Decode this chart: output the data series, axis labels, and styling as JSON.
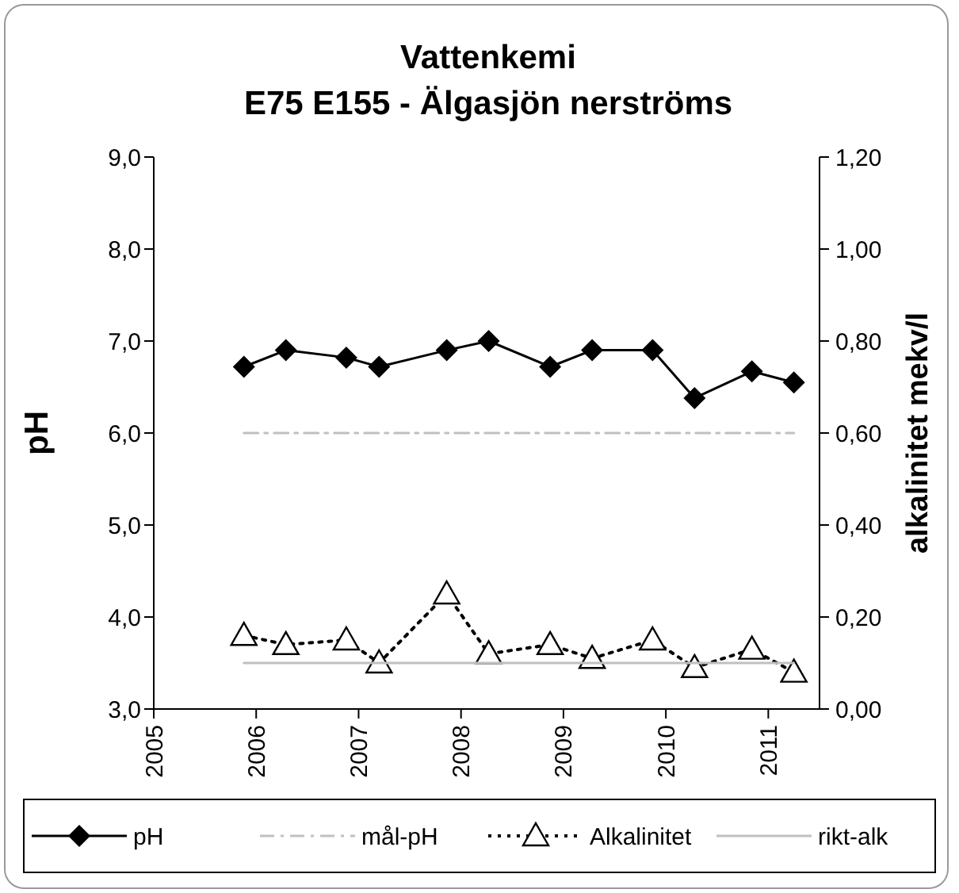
{
  "chart_data": {
    "type": "line",
    "title": "Vattenkemi",
    "subtitle": "E75 E155 - Älgasjön nerströms",
    "ylabel": "pH",
    "y2label": "alkalinitet mekv/l",
    "xlim": [
      2005,
      2011.5
    ],
    "xticks": [
      2005,
      2006,
      2007,
      2008,
      2009,
      2010,
      2011
    ],
    "ylim": [
      3,
      9
    ],
    "yticks": [
      {
        "value": 3,
        "label": "3,0"
      },
      {
        "value": 4,
        "label": "4,0"
      },
      {
        "value": 5,
        "label": "5,0"
      },
      {
        "value": 6,
        "label": "6,0"
      },
      {
        "value": 7,
        "label": "7,0"
      },
      {
        "value": 8,
        "label": "8,0"
      },
      {
        "value": 9,
        "label": "9,0"
      }
    ],
    "y2lim": [
      0,
      1.2
    ],
    "y2ticks": [
      {
        "value": 0,
        "label": "0,00"
      },
      {
        "value": 0.2,
        "label": "0,20"
      },
      {
        "value": 0.4,
        "label": "0,40"
      },
      {
        "value": 0.6,
        "label": "0,60"
      },
      {
        "value": 0.8,
        "label": "0,80"
      },
      {
        "value": 1,
        "label": "1,00"
      },
      {
        "value": 1.2,
        "label": "1,20"
      }
    ],
    "grid": false,
    "legend": "bottom",
    "series": [
      {
        "name": "pH",
        "color": "#000000",
        "marker": "diamond",
        "line_style": "solid",
        "x": [
          2005.88,
          2006.29,
          2006.88,
          2007.2,
          2007.86,
          2008.27,
          2008.87,
          2009.28,
          2009.87,
          2010.28,
          2010.84,
          2011.25
        ],
        "values": [
          6.72,
          6.9,
          6.82,
          6.72,
          6.9,
          7.0,
          6.72,
          6.9,
          6.9,
          6.38,
          6.67,
          6.55
        ]
      },
      {
        "name": "mål-pH",
        "color": "#c0c0c0",
        "marker": "none",
        "line_style": "dashed",
        "x": [
          2005.88,
          2011.25
        ],
        "values": [
          6,
          6
        ]
      },
      {
        "name": "Alkalinitet",
        "color": "#000000",
        "marker": "triangle",
        "line_style": "dotted",
        "axis": "y2",
        "x": [
          2005.88,
          2006.29,
          2006.88,
          2007.2,
          2007.86,
          2008.27,
          2008.87,
          2009.28,
          2009.87,
          2010.28,
          2010.84,
          2011.25
        ],
        "values": [
          0.16,
          0.14,
          0.15,
          0.1,
          0.25,
          0.12,
          0.14,
          0.11,
          0.15,
          0.09,
          0.13,
          0.08
        ]
      },
      {
        "name": "rikt-alk",
        "color": "#c0c0c0",
        "marker": "none",
        "line_style": "solid",
        "axis": "y2",
        "x": [
          2005.88,
          2011.25
        ],
        "values": [
          0.1,
          0.1
        ]
      }
    ]
  }
}
